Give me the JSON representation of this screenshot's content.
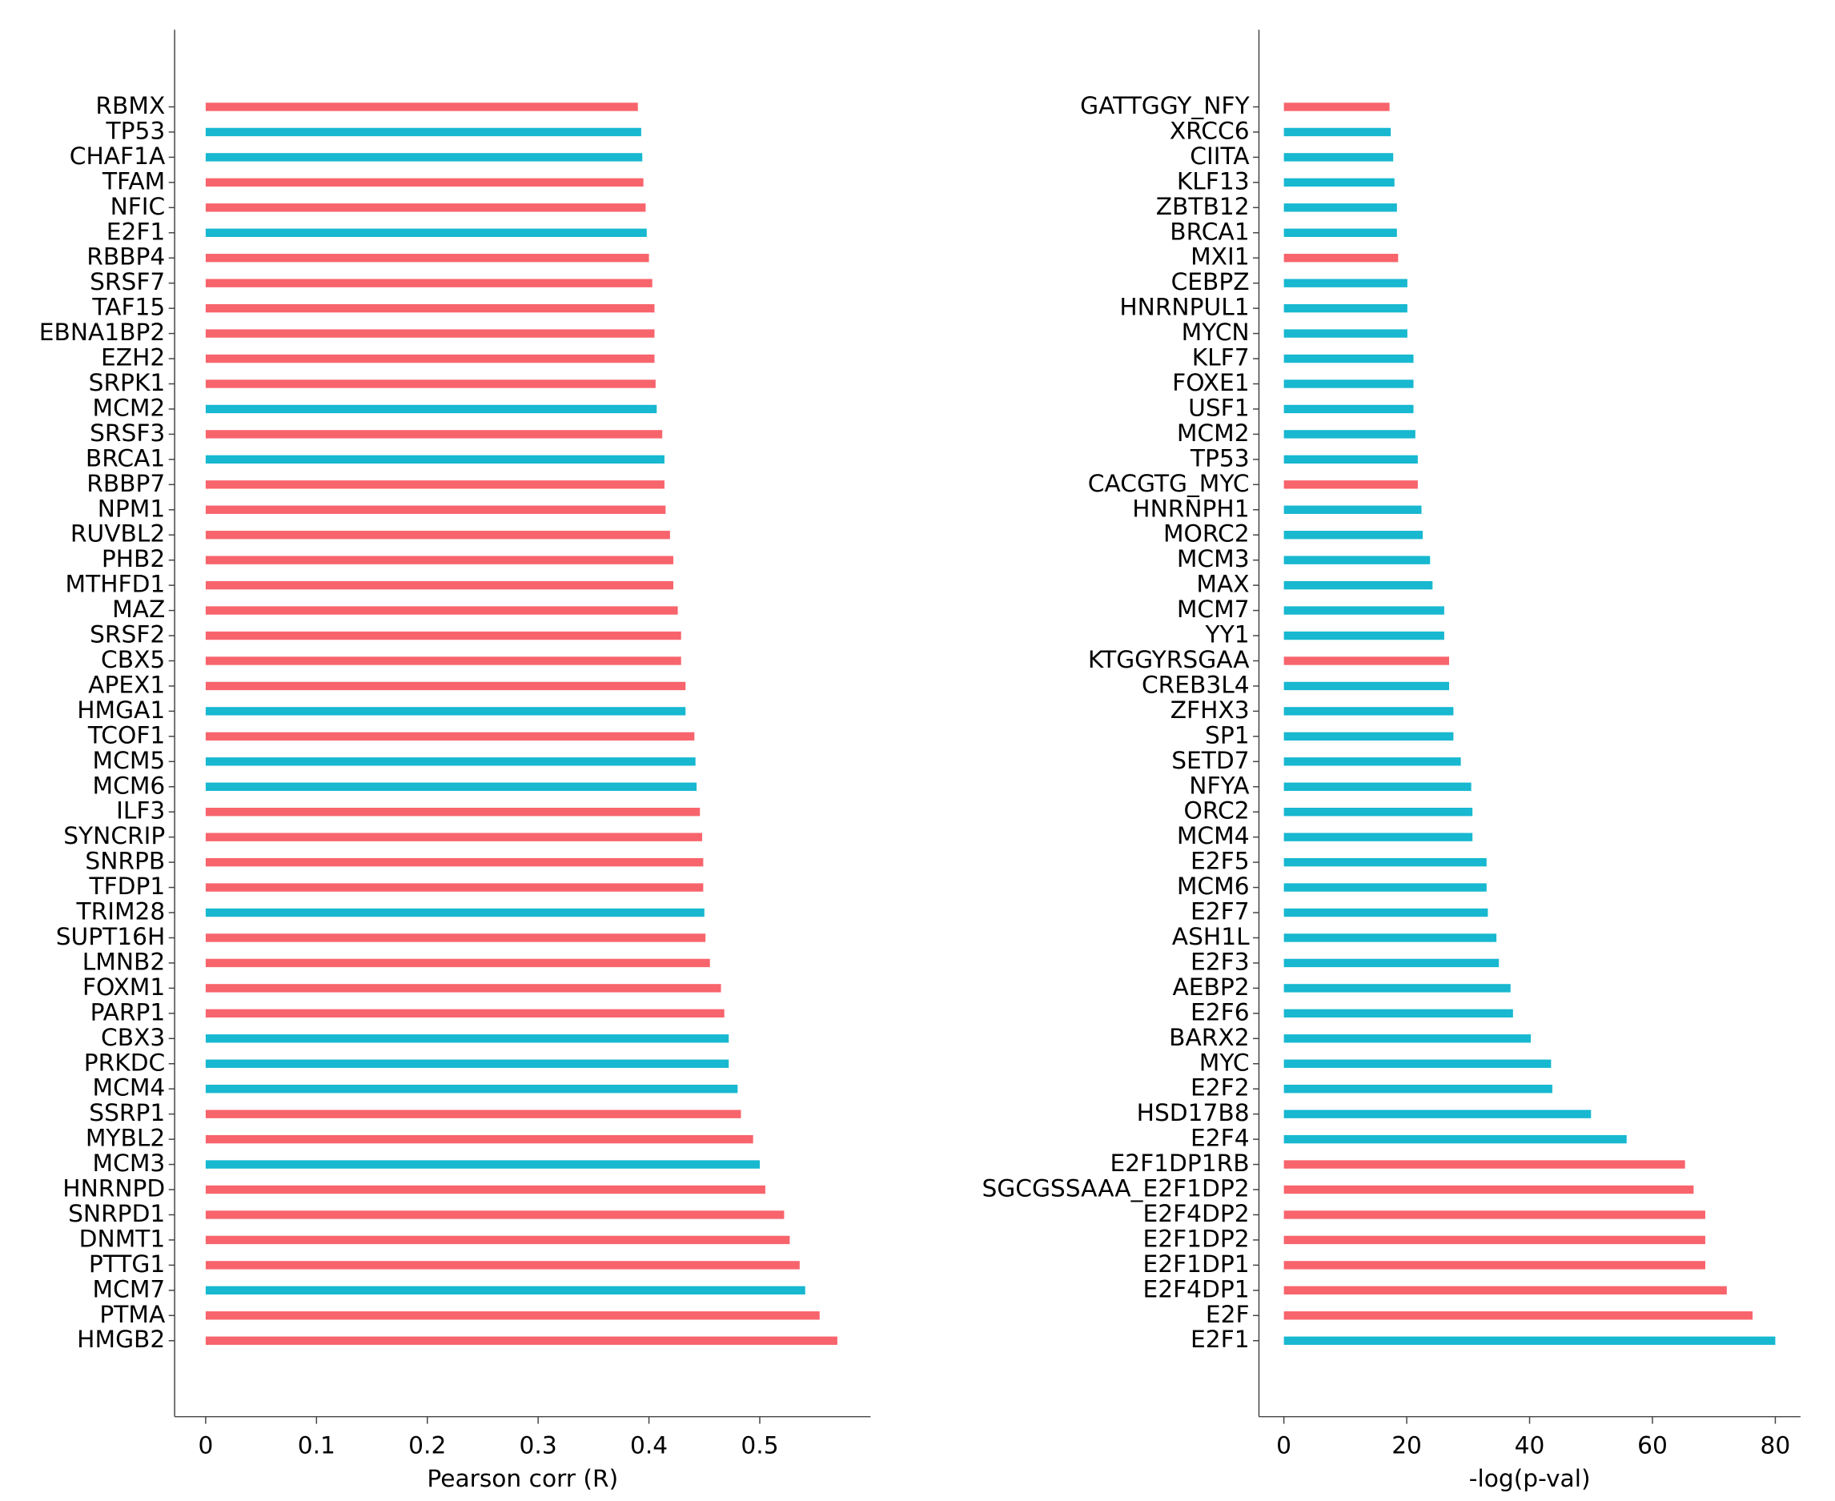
{
  "chart_data": [
    {
      "type": "barh",
      "xlabel": "Pearson corr (R)",
      "categories": [
        "RBMX",
        "TP53",
        "CHAF1A",
        "TFAM",
        "NFIC",
        "E2F1",
        "RBBP4",
        "SRSF7",
        "TAF15",
        "EBNA1BP2",
        "EZH2",
        "SRPK1",
        "MCM2",
        "SRSF3",
        "BRCA1",
        "RBBP7",
        "NPM1",
        "RUVBL2",
        "PHB2",
        "MTHFD1",
        "MAZ",
        "SRSF2",
        "CBX5",
        "APEX1",
        "HMGA1",
        "TCOF1",
        "MCM5",
        "MCM6",
        "ILF3",
        "SYNCRIP",
        "SNRPB",
        "TFDP1",
        "TRIM28",
        "SUPT16H",
        "LMNB2",
        "FOXM1",
        "PARP1",
        "CBX3",
        "PRKDC",
        "MCM4",
        "SSRP1",
        "MYBL2",
        "MCM3",
        "HNRNPD",
        "SNRPD1",
        "DNMT1",
        "PTTG1",
        "MCM7",
        "PTMA",
        "HMGB2"
      ],
      "values": [
        0.39,
        0.393,
        0.394,
        0.395,
        0.397,
        0.398,
        0.4,
        0.403,
        0.405,
        0.405,
        0.405,
        0.406,
        0.407,
        0.412,
        0.414,
        0.414,
        0.415,
        0.419,
        0.422,
        0.422,
        0.426,
        0.429,
        0.429,
        0.433,
        0.433,
        0.441,
        0.442,
        0.443,
        0.446,
        0.448,
        0.449,
        0.449,
        0.45,
        0.451,
        0.455,
        0.465,
        0.468,
        0.472,
        0.472,
        0.48,
        0.483,
        0.494,
        0.5,
        0.505,
        0.522,
        0.527,
        0.536,
        0.541,
        0.554,
        0.57
      ],
      "colors": [
        "#f8646c",
        "#17b8d0",
        "#17b8d0",
        "#f8646c",
        "#f8646c",
        "#17b8d0",
        "#f8646c",
        "#f8646c",
        "#f8646c",
        "#f8646c",
        "#f8646c",
        "#f8646c",
        "#17b8d0",
        "#f8646c",
        "#17b8d0",
        "#f8646c",
        "#f8646c",
        "#f8646c",
        "#f8646c",
        "#f8646c",
        "#f8646c",
        "#f8646c",
        "#f8646c",
        "#f8646c",
        "#17b8d0",
        "#f8646c",
        "#17b8d0",
        "#17b8d0",
        "#f8646c",
        "#f8646c",
        "#f8646c",
        "#f8646c",
        "#17b8d0",
        "#f8646c",
        "#f8646c",
        "#f8646c",
        "#f8646c",
        "#17b8d0",
        "#17b8d0",
        "#17b8d0",
        "#f8646c",
        "#f8646c",
        "#17b8d0",
        "#f8646c",
        "#f8646c",
        "#f8646c",
        "#f8646c",
        "#17b8d0",
        "#f8646c",
        "#f8646c"
      ],
      "xlim": [
        -0.028,
        0.6
      ],
      "xticks": [
        0,
        0.1,
        0.2,
        0.3,
        0.4,
        0.5
      ]
    },
    {
      "type": "barh",
      "xlabel": "-log(p-val)",
      "categories": [
        "GATTGGY_NFY",
        "XRCC6",
        "CIITA",
        "KLF13",
        "ZBTB12",
        "BRCA1",
        "MXI1",
        "CEBPZ",
        "HNRNPUL1",
        "MYCN",
        "KLF7",
        "FOXE1",
        "USF1",
        "MCM2",
        "TP53",
        "CACGTG_MYC",
        "HNRNPH1",
        "MORC2",
        "MCM3",
        "MAX",
        "MCM7",
        "YY1",
        "KTGGYRSGAA",
        "CREB3L4",
        "ZFHX3",
        "SP1",
        "SETD7",
        "NFYA",
        "ORC2",
        "MCM4",
        "E2F5",
        "MCM6",
        "E2F7",
        "ASH1L",
        "E2F3",
        "AEBP2",
        "E2F6",
        "BARX2",
        "MYC",
        "E2F2",
        "HSD17B8",
        "E2F4",
        "E2F1DP1RB",
        "SGCGSSAAA_E2F1DP2",
        "E2F4DP2",
        "E2F1DP2",
        "E2F1DP1",
        "E2F4DP1",
        "E2F",
        "E2F1"
      ],
      "values": [
        17.2,
        17.4,
        17.8,
        18.0,
        18.4,
        18.4,
        18.6,
        20.1,
        20.1,
        20.1,
        21.1,
        21.1,
        21.1,
        21.4,
        21.8,
        21.8,
        22.4,
        22.6,
        23.8,
        24.2,
        26.1,
        26.1,
        26.9,
        26.9,
        27.6,
        27.6,
        28.8,
        30.5,
        30.7,
        30.7,
        33.0,
        33.0,
        33.2,
        34.6,
        35.0,
        36.9,
        37.3,
        40.2,
        43.5,
        43.7,
        50.0,
        55.8,
        65.3,
        66.7,
        68.6,
        68.6,
        68.6,
        72.1,
        76.3,
        80.0
      ],
      "colors": [
        "#f8646c",
        "#17b8d0",
        "#17b8d0",
        "#17b8d0",
        "#17b8d0",
        "#17b8d0",
        "#f8646c",
        "#17b8d0",
        "#17b8d0",
        "#17b8d0",
        "#17b8d0",
        "#17b8d0",
        "#17b8d0",
        "#17b8d0",
        "#17b8d0",
        "#f8646c",
        "#17b8d0",
        "#17b8d0",
        "#17b8d0",
        "#17b8d0",
        "#17b8d0",
        "#17b8d0",
        "#f8646c",
        "#17b8d0",
        "#17b8d0",
        "#17b8d0",
        "#17b8d0",
        "#17b8d0",
        "#17b8d0",
        "#17b8d0",
        "#17b8d0",
        "#17b8d0",
        "#17b8d0",
        "#17b8d0",
        "#17b8d0",
        "#17b8d0",
        "#17b8d0",
        "#17b8d0",
        "#17b8d0",
        "#17b8d0",
        "#17b8d0",
        "#17b8d0",
        "#f8646c",
        "#f8646c",
        "#f8646c",
        "#f8646c",
        "#f8646c",
        "#f8646c",
        "#f8646c",
        "#17b8d0"
      ],
      "xlim": [
        -4.06,
        84.1
      ],
      "xticks": [
        0,
        20,
        40,
        60,
        80
      ]
    }
  ]
}
